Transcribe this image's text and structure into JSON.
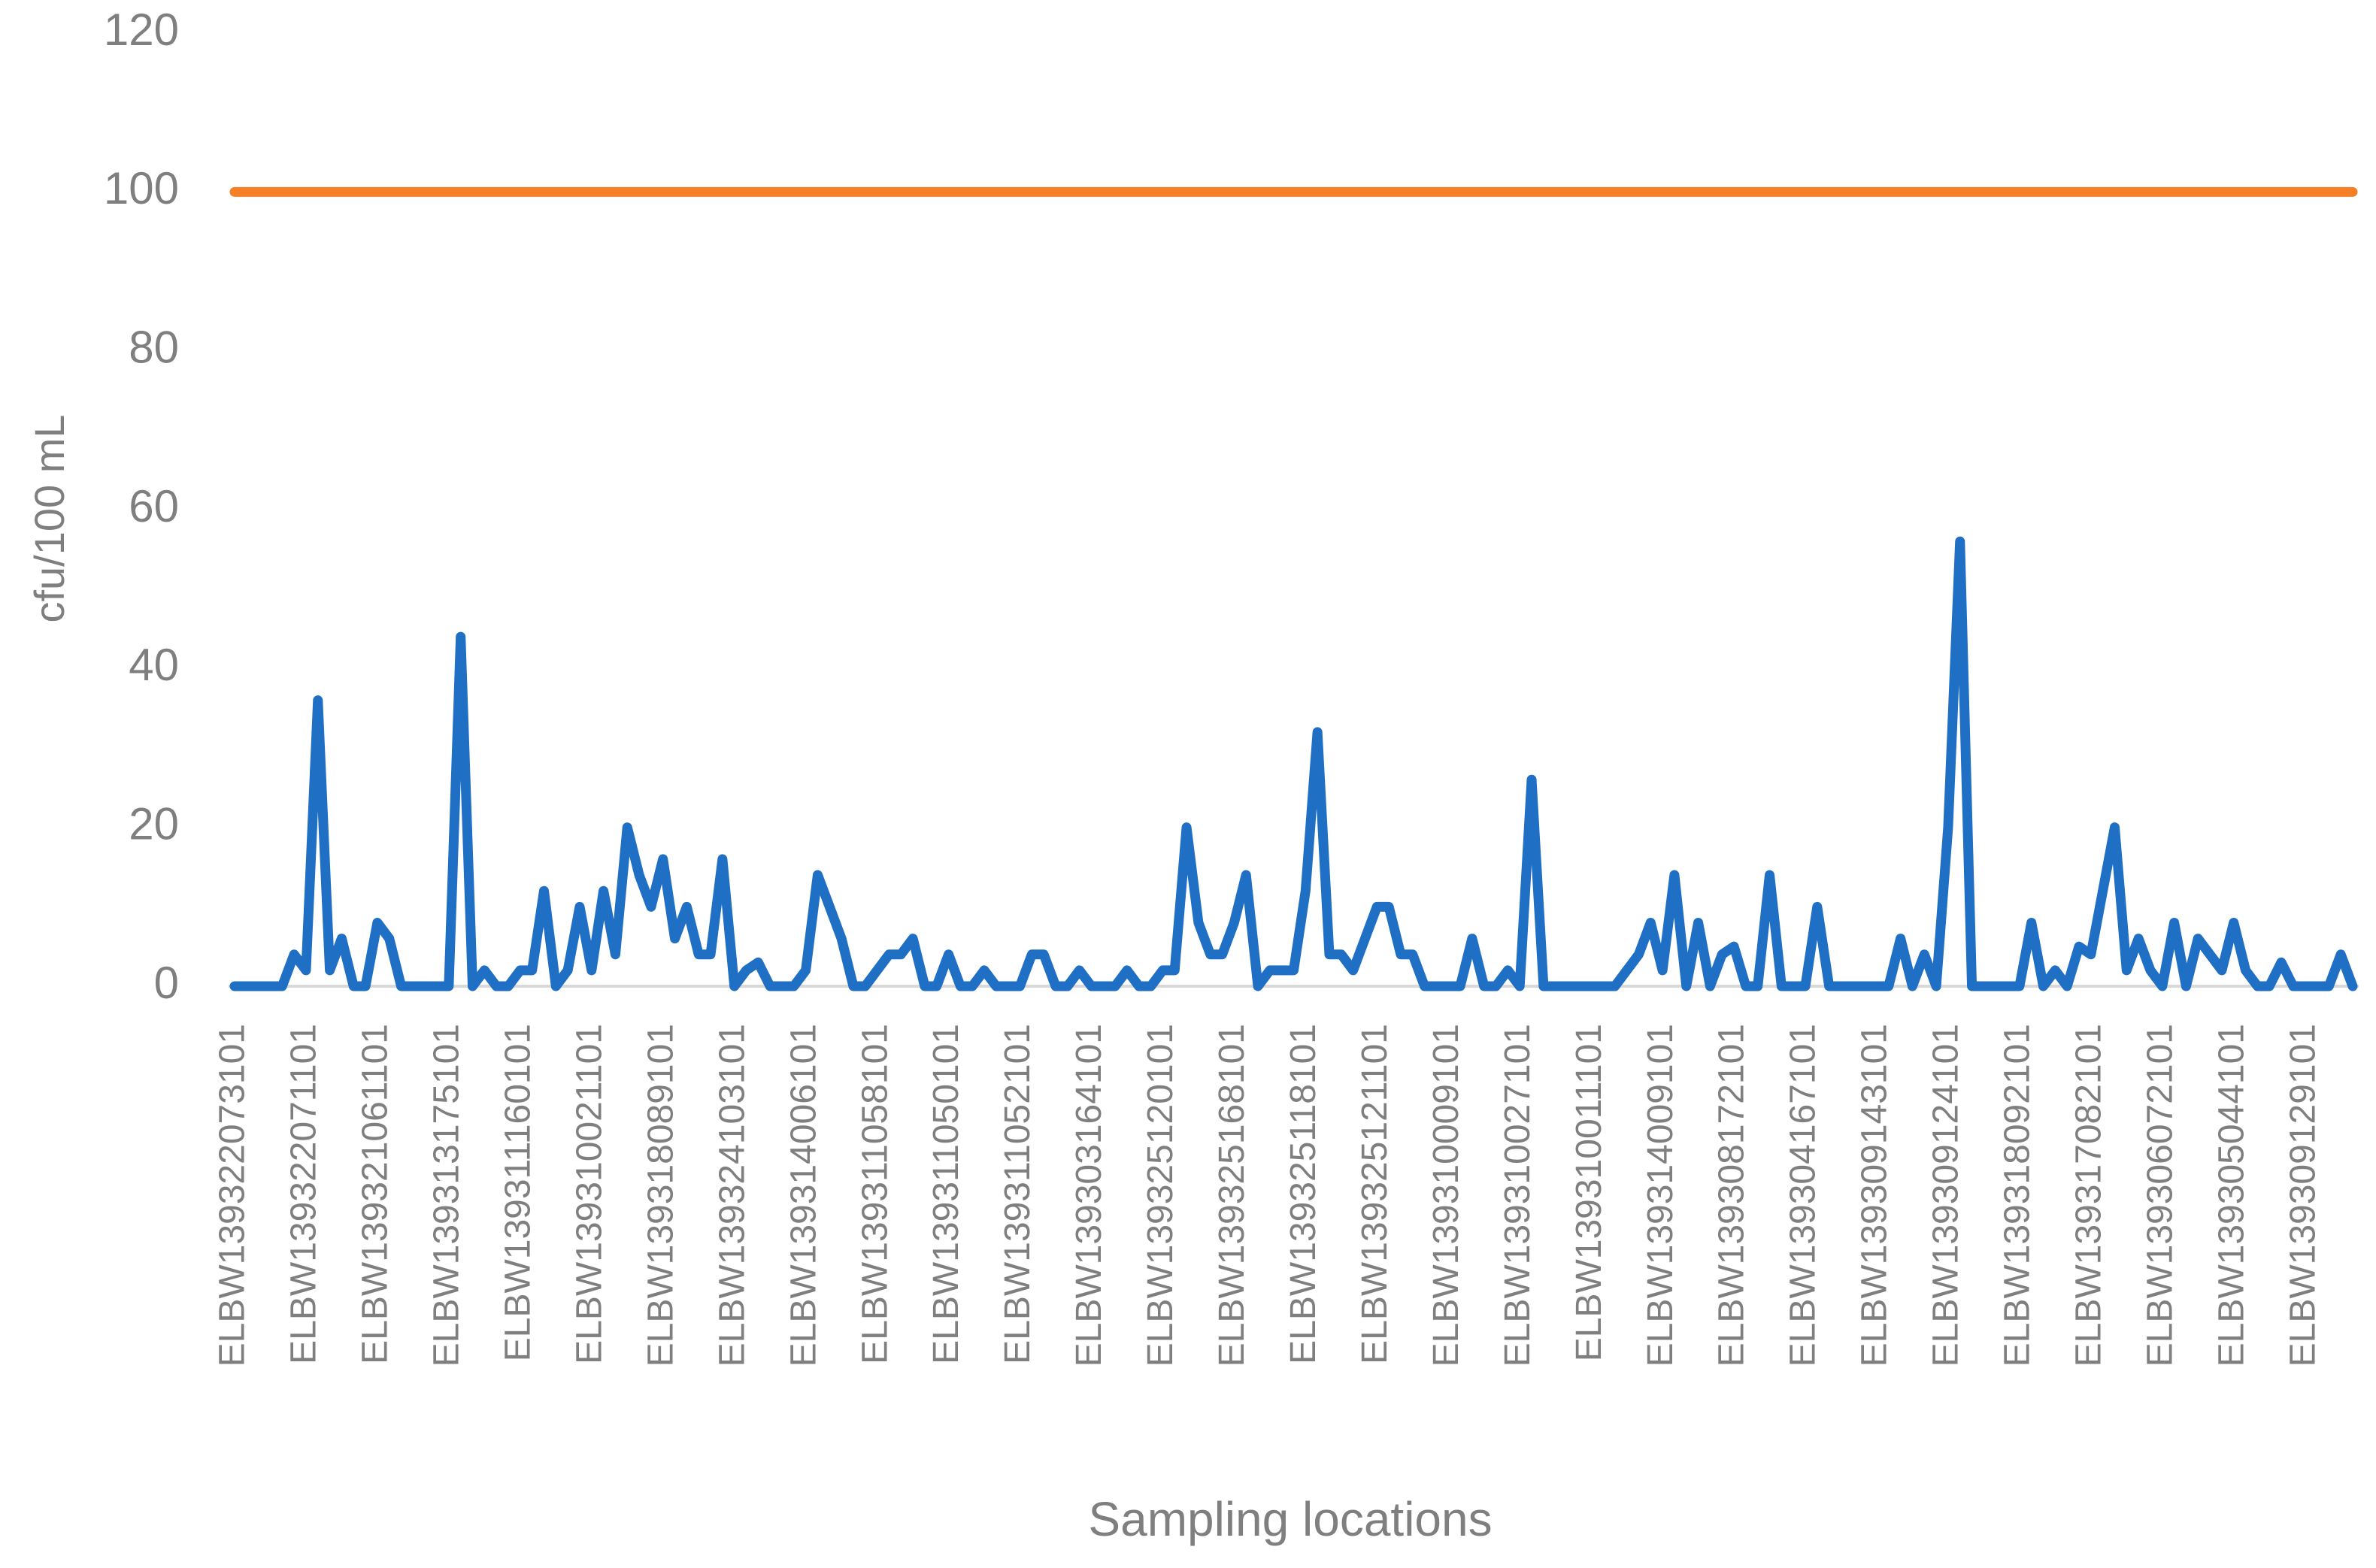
{
  "chart_data": {
    "type": "line",
    "x_label": "Sampling locations",
    "y_label": "cfu/100 mL",
    "categories": [
      "ELBW139322073101",
      null,
      null,
      null,
      null,
      null,
      "ELBW139322071101",
      null,
      null,
      null,
      null,
      null,
      "ELBW139321061101",
      null,
      null,
      null,
      null,
      null,
      "ELBW139313175101",
      null,
      null,
      null,
      null,
      null,
      "ELBW139311160101",
      null,
      null,
      null,
      null,
      null,
      "ELBW139310021101",
      null,
      null,
      null,
      null,
      null,
      "ELBW139318089101",
      null,
      null,
      null,
      null,
      null,
      "ELBW139324103101",
      null,
      null,
      null,
      null,
      null,
      "ELBW139314006101",
      null,
      null,
      null,
      null,
      null,
      "ELBW139311058101",
      null,
      null,
      null,
      null,
      null,
      "ELBW139311050101",
      null,
      null,
      null,
      null,
      null,
      "ELBW139311052101",
      null,
      null,
      null,
      null,
      null,
      "ELBW139303164101",
      null,
      null,
      null,
      null,
      null,
      "ELBW139325120101",
      null,
      null,
      null,
      null,
      null,
      "ELBW139325168101",
      null,
      null,
      null,
      null,
      null,
      "ELBW139325118101",
      null,
      null,
      null,
      null,
      null,
      "ELBW139325121101",
      null,
      null,
      null,
      null,
      null,
      "ELBW139310009101",
      null,
      null,
      null,
      null,
      null,
      "ELBW139310027101",
      null,
      null,
      null,
      null,
      null,
      "ELBW139310011101",
      null,
      null,
      null,
      null,
      null,
      "ELBW139314009101",
      null,
      null,
      null,
      null,
      null,
      "ELBW139308172101",
      null,
      null,
      null,
      null,
      null,
      "ELBW139304167101",
      null,
      null,
      null,
      null,
      null,
      "ELBW139309143101",
      null,
      null,
      null,
      null,
      null,
      "ELBW139309124101",
      null,
      null,
      null,
      null,
      null,
      "ELBW139318092101",
      null,
      null,
      null,
      null,
      null,
      "ELBW139317082101",
      null,
      null,
      null,
      null,
      null,
      "ELBW139306072101",
      null,
      null,
      null,
      null,
      null,
      "ELBW139305044101",
      null,
      null,
      null,
      null,
      null,
      "ELBW139309129101",
      null,
      null,
      null,
      null
    ],
    "series": [
      {
        "color": "#1f6fc5",
        "values": [
          0,
          0,
          0,
          0,
          0,
          4,
          2,
          36,
          2,
          6,
          0,
          0,
          8,
          6,
          0,
          0,
          0,
          0,
          0,
          44,
          0,
          2,
          0,
          0,
          2,
          2,
          12,
          0,
          2,
          10,
          2,
          12,
          4,
          20,
          14,
          10,
          16,
          6,
          10,
          4,
          4,
          16,
          0,
          2,
          3,
          0,
          0,
          0,
          2,
          14,
          10,
          6,
          0,
          0,
          2,
          4,
          4,
          6,
          0,
          0,
          4,
          0,
          0,
          2,
          0,
          0,
          0,
          4,
          4,
          0,
          0,
          2,
          0,
          0,
          0,
          2,
          0,
          0,
          2,
          2,
          20,
          8,
          4,
          4,
          8,
          14,
          0,
          2,
          2,
          2,
          12,
          32,
          4,
          4,
          2,
          6,
          10,
          10,
          4,
          4,
          0,
          0,
          0,
          0,
          6,
          0,
          0,
          2,
          0,
          26,
          0,
          0,
          0,
          0,
          0,
          0,
          0,
          2,
          4,
          8,
          2,
          14,
          0,
          8,
          0,
          4,
          5,
          0,
          0,
          14,
          0,
          0,
          0,
          10,
          0,
          0,
          0,
          0,
          0,
          0,
          6,
          0,
          4,
          0,
          20,
          56,
          0,
          0,
          0,
          0,
          0,
          8,
          0,
          2,
          0,
          5,
          4,
          12,
          20,
          2,
          6,
          2,
          0,
          8,
          0,
          6,
          4,
          2,
          8,
          2,
          0,
          0,
          3,
          0,
          0,
          0,
          0,
          4,
          0
        ]
      },
      {
        "color": "#f58025",
        "values": [
          100,
          100,
          100,
          100,
          100,
          100,
          100,
          100,
          100,
          100,
          100,
          100,
          100,
          100,
          100,
          100,
          100,
          100,
          100,
          100,
          100,
          100,
          100,
          100,
          100,
          100,
          100,
          100,
          100,
          100,
          100,
          100,
          100,
          100,
          100,
          100,
          100,
          100,
          100,
          100,
          100,
          100,
          100,
          100,
          100,
          100,
          100,
          100,
          100,
          100,
          100,
          100,
          100,
          100,
          100,
          100,
          100,
          100,
          100,
          100,
          100,
          100,
          100,
          100,
          100,
          100,
          100,
          100,
          100,
          100,
          100,
          100,
          100,
          100,
          100,
          100,
          100,
          100,
          100,
          100,
          100,
          100,
          100,
          100,
          100,
          100,
          100,
          100,
          100,
          100,
          100,
          100,
          100,
          100,
          100,
          100,
          100,
          100,
          100,
          100,
          100,
          100,
          100,
          100,
          100,
          100,
          100,
          100,
          100,
          100,
          100,
          100,
          100,
          100,
          100,
          100,
          100,
          100,
          100,
          100,
          100,
          100,
          100,
          100,
          100,
          100,
          100,
          100,
          100,
          100,
          100,
          100,
          100,
          100,
          100,
          100,
          100,
          100,
          100,
          100,
          100,
          100,
          100,
          100,
          100,
          100,
          100,
          100,
          100,
          100,
          100,
          100,
          100,
          100,
          100,
          100,
          100,
          100,
          100,
          100,
          100,
          100,
          100,
          100,
          100,
          100,
          100,
          100,
          100,
          100,
          100,
          100,
          100,
          100,
          100,
          100,
          100,
          100,
          100
        ]
      }
    ],
    "ylim": [
      0,
      120
    ],
    "yticks": [
      0,
      20,
      40,
      60,
      80,
      100,
      120
    ],
    "grid": false
  }
}
